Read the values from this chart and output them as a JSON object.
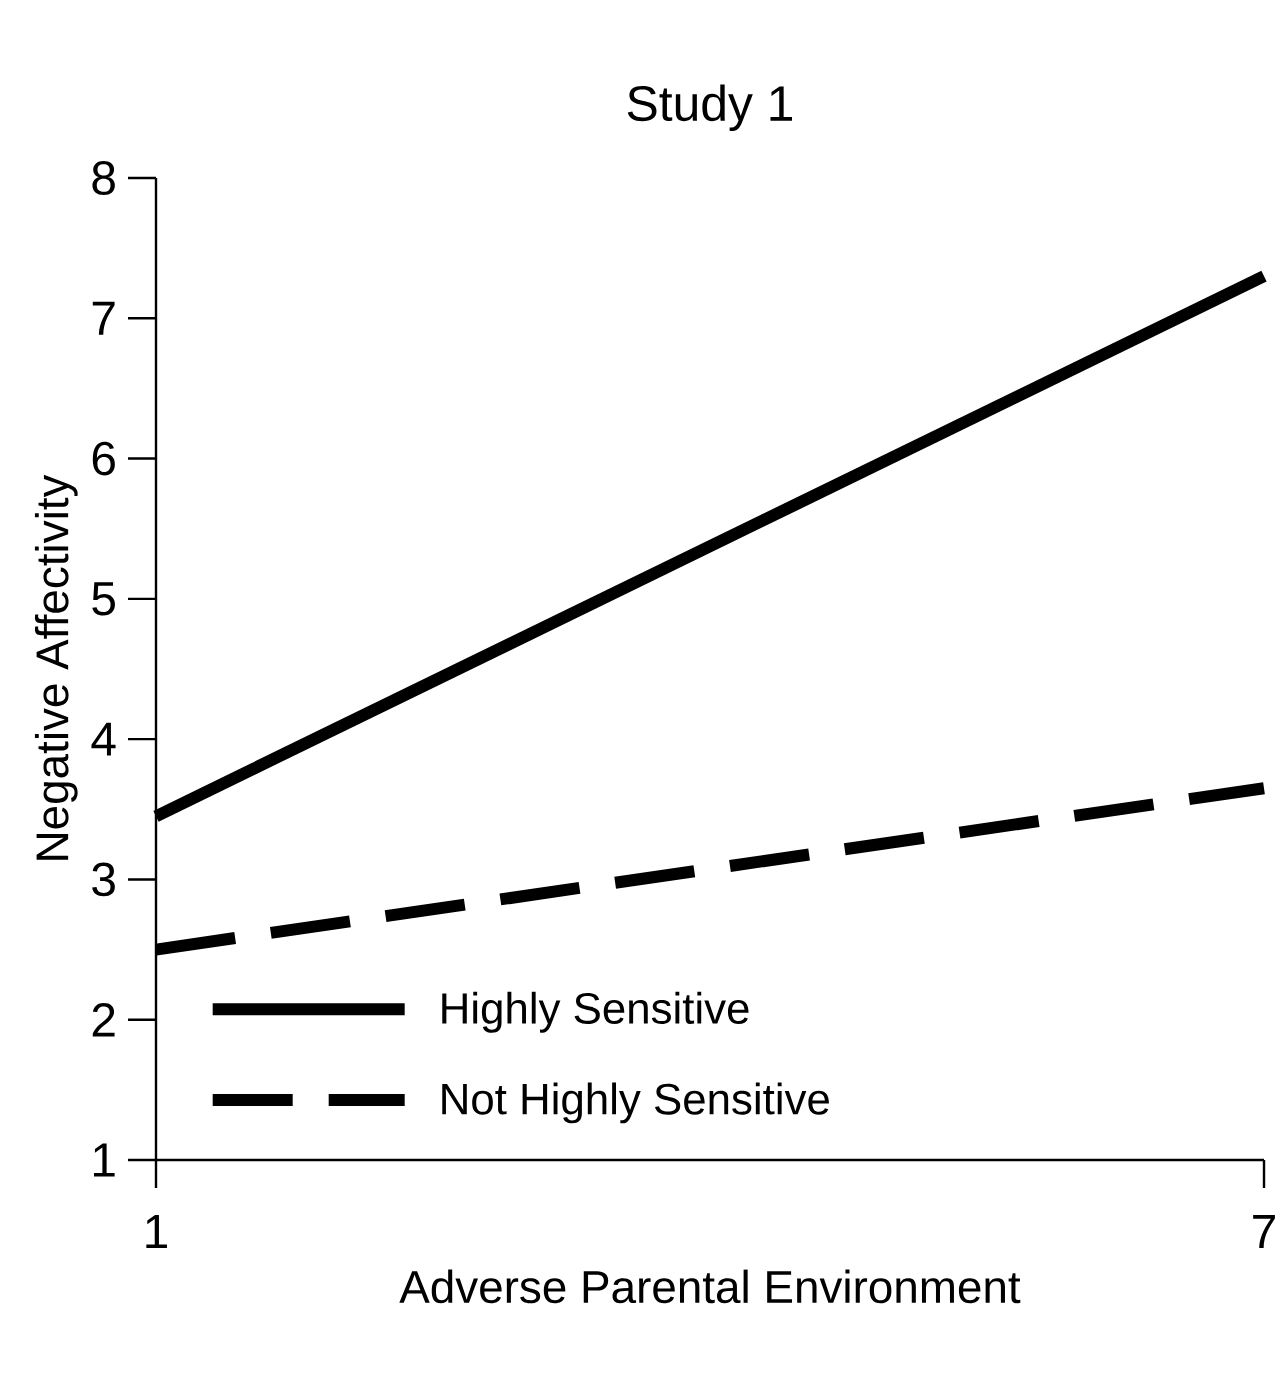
{
  "chart_data": {
    "type": "line",
    "title": "Study 1",
    "xlabel": "Adverse Parental Environment",
    "ylabel": "Negative Affectivity",
    "x": [
      1,
      7
    ],
    "series": [
      {
        "name": "Highly Sensitive",
        "color": "#000000",
        "line_style": "solid",
        "values": [
          3.45,
          7.3
        ]
      },
      {
        "name": "Not Highly Sensitive",
        "color": "#000000",
        "line_style": "dashed",
        "values": [
          2.5,
          3.65
        ]
      }
    ],
    "xlim": [
      1,
      7
    ],
    "ylim": [
      1,
      8
    ],
    "xticks": [
      1,
      7
    ],
    "yticks": [
      1,
      2,
      3,
      4,
      5,
      6,
      7,
      8
    ],
    "legend": "bottom left",
    "grid": false,
    "marker": "none"
  }
}
